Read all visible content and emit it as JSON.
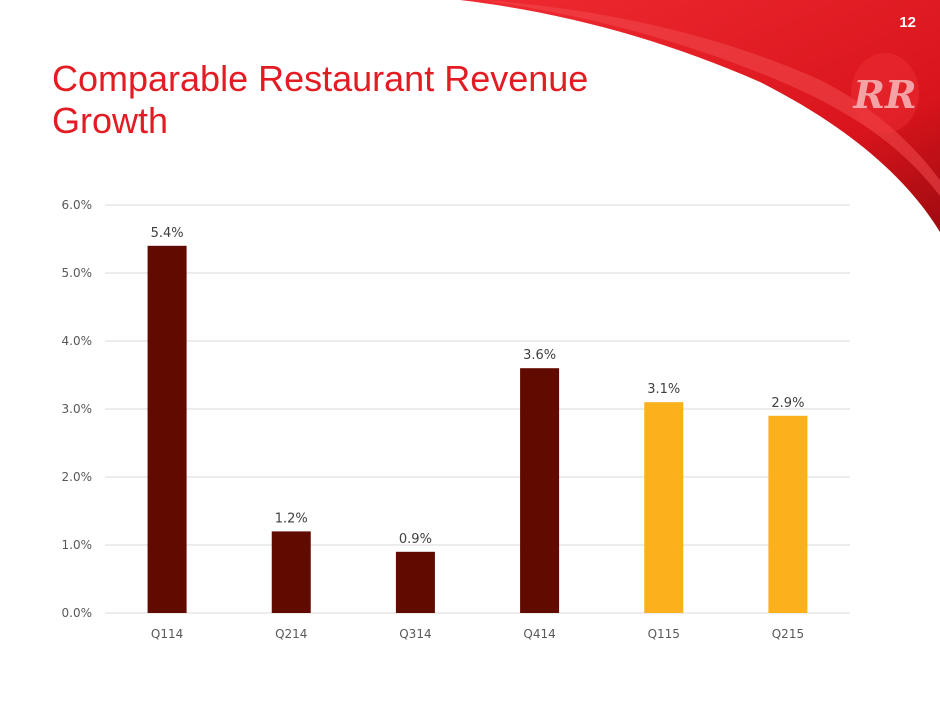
{
  "slide": {
    "number": "12",
    "title": "Comparable Restaurant Revenue Growth"
  },
  "logo": {
    "text": "RR"
  },
  "colors": {
    "brand_red": "#e31b23",
    "bar_dark": "#610b00",
    "bar_gold": "#fbb01c",
    "grid": "#d9d9d9"
  },
  "chart_data": {
    "type": "bar",
    "title": "",
    "xlabel": "",
    "ylabel": "",
    "categories": [
      "Q114",
      "Q214",
      "Q314",
      "Q414",
      "Q115",
      "Q215"
    ],
    "values": [
      5.4,
      1.2,
      0.9,
      3.6,
      3.1,
      2.9
    ],
    "data_labels": [
      "5.4%",
      "1.2%",
      "0.9%",
      "3.6%",
      "3.1%",
      "2.9%"
    ],
    "bar_colors": [
      "#610b00",
      "#610b00",
      "#610b00",
      "#610b00",
      "#fbb01c",
      "#fbb01c"
    ],
    "ylim": [
      0,
      6.0
    ],
    "yticks": [
      0,
      1.0,
      2.0,
      3.0,
      4.0,
      5.0,
      6.0
    ],
    "ytick_labels": [
      "0.0%",
      "1.0%",
      "2.0%",
      "3.0%",
      "4.0%",
      "5.0%",
      "6.0%"
    ],
    "grid": true,
    "legend": "none"
  }
}
